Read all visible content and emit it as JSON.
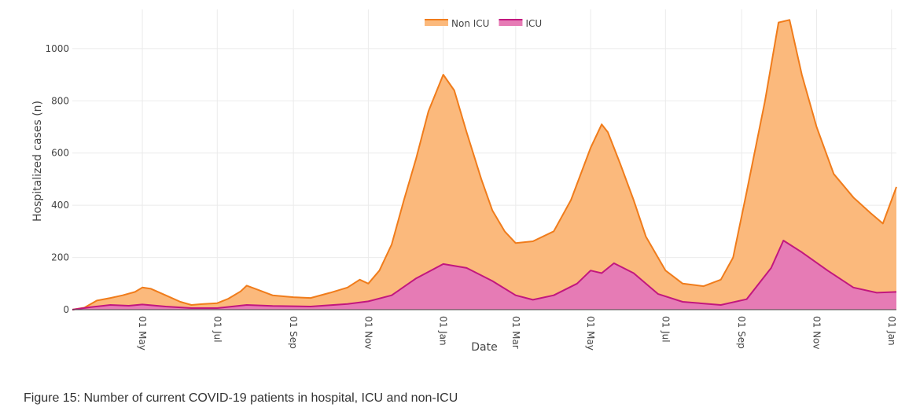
{
  "caption": "Figure 15: Number of current COVID-19 patients in hospital, ICU and non-ICU",
  "chart_data": {
    "type": "area",
    "stacked": true,
    "xlabel": "Date",
    "ylabel": "Hospitalized cases (n)",
    "ylim": [
      0,
      1150
    ],
    "yticks": [
      0,
      200,
      400,
      600,
      800,
      1000
    ],
    "x_start": "2020-03-05",
    "x_end": "2022-01-05",
    "x_ticks": [
      {
        "date": "2020-05-01",
        "label": "01 May"
      },
      {
        "date": "2020-07-01",
        "label": "01 Jul"
      },
      {
        "date": "2020-09-01",
        "label": "01 Sep"
      },
      {
        "date": "2020-11-01",
        "label": "01 Nov"
      },
      {
        "date": "2021-01-01",
        "label": "01 Jan"
      },
      {
        "date": "2021-03-01",
        "label": "01 Mar"
      },
      {
        "date": "2021-05-01",
        "label": "01 May"
      },
      {
        "date": "2021-07-01",
        "label": "01 Jul"
      },
      {
        "date": "2021-09-01",
        "label": "01 Sep"
      },
      {
        "date": "2021-11-01",
        "label": "01 Nov"
      },
      {
        "date": "2022-01-01",
        "label": "01 Jan"
      }
    ],
    "legend": {
      "position": "top-center"
    },
    "series": [
      {
        "name": "Non ICU",
        "stroke": "#f07c1b",
        "fill": "#fbb97c",
        "note": "total hospitalized (stacked top)",
        "points": [
          [
            "2020-03-05",
            0
          ],
          [
            "2020-03-15",
            8
          ],
          [
            "2020-03-25",
            35
          ],
          [
            "2020-04-05",
            45
          ],
          [
            "2020-04-15",
            55
          ],
          [
            "2020-04-25",
            68
          ],
          [
            "2020-05-01",
            85
          ],
          [
            "2020-05-08",
            80
          ],
          [
            "2020-05-20",
            55
          ],
          [
            "2020-06-01",
            30
          ],
          [
            "2020-06-10",
            18
          ],
          [
            "2020-06-20",
            22
          ],
          [
            "2020-07-01",
            25
          ],
          [
            "2020-07-10",
            42
          ],
          [
            "2020-07-20",
            70
          ],
          [
            "2020-07-25",
            92
          ],
          [
            "2020-08-01",
            80
          ],
          [
            "2020-08-15",
            55
          ],
          [
            "2020-09-01",
            48
          ],
          [
            "2020-09-15",
            45
          ],
          [
            "2020-10-01",
            65
          ],
          [
            "2020-10-15",
            85
          ],
          [
            "2020-10-25",
            115
          ],
          [
            "2020-11-01",
            100
          ],
          [
            "2020-11-10",
            150
          ],
          [
            "2020-11-20",
            250
          ],
          [
            "2020-11-30",
            420
          ],
          [
            "2020-12-10",
            580
          ],
          [
            "2020-12-20",
            760
          ],
          [
            "2021-01-01",
            900
          ],
          [
            "2021-01-10",
            840
          ],
          [
            "2021-01-20",
            680
          ],
          [
            "2021-02-01",
            500
          ],
          [
            "2021-02-10",
            380
          ],
          [
            "2021-02-20",
            300
          ],
          [
            "2021-03-01",
            255
          ],
          [
            "2021-03-15",
            262
          ],
          [
            "2021-04-01",
            300
          ],
          [
            "2021-04-15",
            420
          ],
          [
            "2021-05-01",
            620
          ],
          [
            "2021-05-10",
            710
          ],
          [
            "2021-05-15",
            680
          ],
          [
            "2021-05-25",
            560
          ],
          [
            "2021-06-05",
            420
          ],
          [
            "2021-06-15",
            280
          ],
          [
            "2021-07-01",
            150
          ],
          [
            "2021-07-15",
            100
          ],
          [
            "2021-08-01",
            90
          ],
          [
            "2021-08-15",
            115
          ],
          [
            "2021-08-25",
            200
          ],
          [
            "2021-09-05",
            450
          ],
          [
            "2021-09-20",
            800
          ],
          [
            "2021-10-01",
            1100
          ],
          [
            "2021-10-10",
            1110
          ],
          [
            "2021-10-20",
            900
          ],
          [
            "2021-11-01",
            700
          ],
          [
            "2021-11-15",
            520
          ],
          [
            "2021-12-01",
            430
          ],
          [
            "2021-12-15",
            370
          ],
          [
            "2021-12-25",
            330
          ],
          [
            "2022-01-05",
            470
          ]
        ]
      },
      {
        "name": "ICU",
        "stroke": "#c2177e",
        "fill": "#e67bb5",
        "points": [
          [
            "2020-03-05",
            0
          ],
          [
            "2020-03-20",
            10
          ],
          [
            "2020-04-05",
            18
          ],
          [
            "2020-04-20",
            15
          ],
          [
            "2020-05-01",
            20
          ],
          [
            "2020-05-20",
            12
          ],
          [
            "2020-06-10",
            6
          ],
          [
            "2020-07-01",
            6
          ],
          [
            "2020-07-25",
            18
          ],
          [
            "2020-08-15",
            14
          ],
          [
            "2020-09-15",
            12
          ],
          [
            "2020-10-15",
            22
          ],
          [
            "2020-11-01",
            32
          ],
          [
            "2020-11-20",
            55
          ],
          [
            "2020-12-10",
            120
          ],
          [
            "2021-01-01",
            175
          ],
          [
            "2021-01-20",
            160
          ],
          [
            "2021-02-10",
            110
          ],
          [
            "2021-03-01",
            55
          ],
          [
            "2021-03-15",
            38
          ],
          [
            "2021-04-01",
            55
          ],
          [
            "2021-04-20",
            100
          ],
          [
            "2021-05-01",
            150
          ],
          [
            "2021-05-10",
            140
          ],
          [
            "2021-05-20",
            178
          ],
          [
            "2021-06-05",
            140
          ],
          [
            "2021-06-25",
            60
          ],
          [
            "2021-07-15",
            30
          ],
          [
            "2021-08-15",
            18
          ],
          [
            "2021-09-05",
            40
          ],
          [
            "2021-09-25",
            160
          ],
          [
            "2021-10-05",
            265
          ],
          [
            "2021-10-20",
            220
          ],
          [
            "2021-11-10",
            150
          ],
          [
            "2021-12-01",
            85
          ],
          [
            "2021-12-20",
            65
          ],
          [
            "2022-01-05",
            68
          ]
        ]
      }
    ]
  }
}
